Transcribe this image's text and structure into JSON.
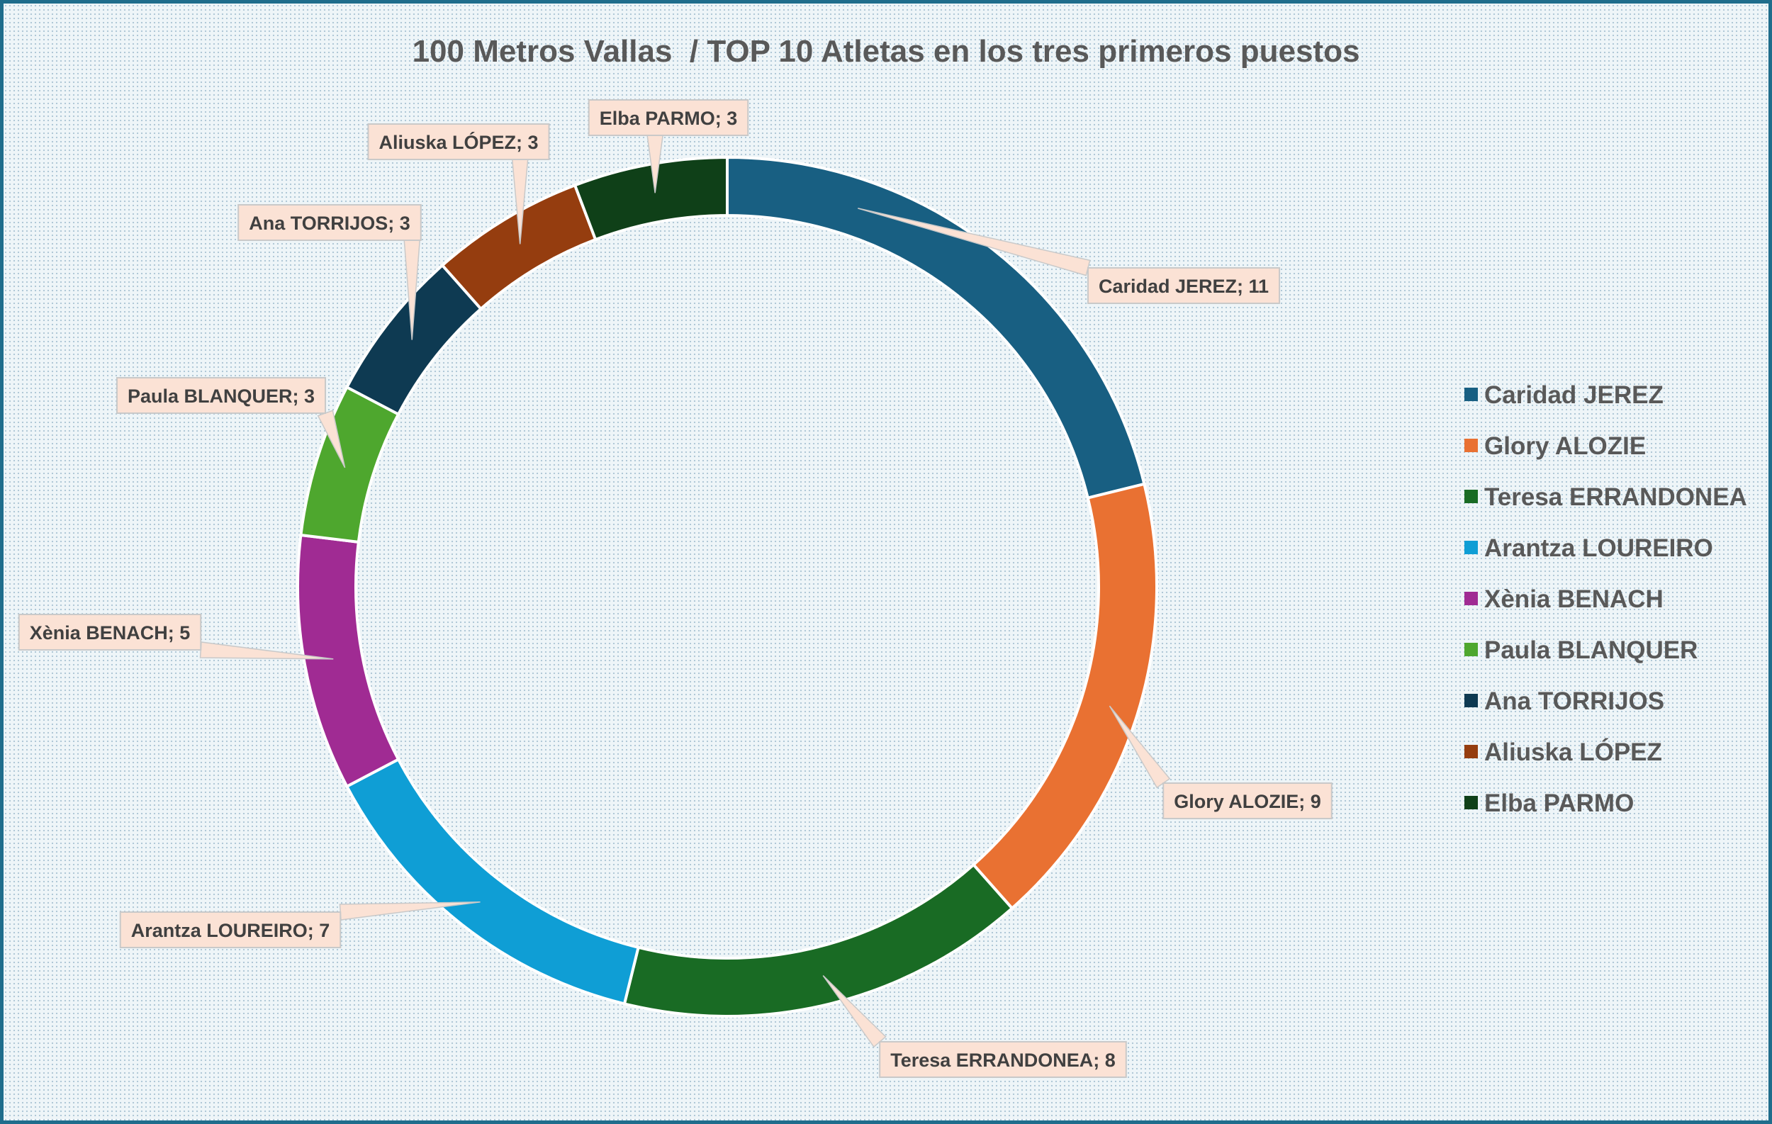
{
  "chart_data": {
    "type": "pie",
    "title": "100 Metros Vallas  / TOP 10 Atletas en los tres primeros puestos",
    "categories": [
      "Caridad JEREZ",
      "Glory ALOZIE",
      "Teresa ERRANDONEA",
      "Arantza LOUREIRO",
      "Xènia BENACH",
      "Paula BLANQUER",
      "Ana TORRIJOS",
      "Aliuska LÓPEZ",
      "Elba PARMO"
    ],
    "values": [
      11,
      9,
      8,
      7,
      5,
      3,
      3,
      3,
      3
    ],
    "data_labels": [
      "Caridad JEREZ; 11",
      "Glory ALOZIE; 9",
      "Teresa ERRANDONEA; 8",
      "Arantza LOUREIRO; 7",
      "Xènia BENACH; 5",
      "Paula BLANQUER; 3",
      "Ana TORRIJOS; 3",
      "Aliuska LÓPEZ; 3",
      "Elba PARMO; 3"
    ],
    "colors": [
      "#185f82",
      "#e97132",
      "#196b24",
      "#0f9ed5",
      "#a02b93",
      "#4ea72e",
      "#0e3a52",
      "#953d0f",
      "#0f4018"
    ],
    "donut": true,
    "legend_position": "right"
  }
}
